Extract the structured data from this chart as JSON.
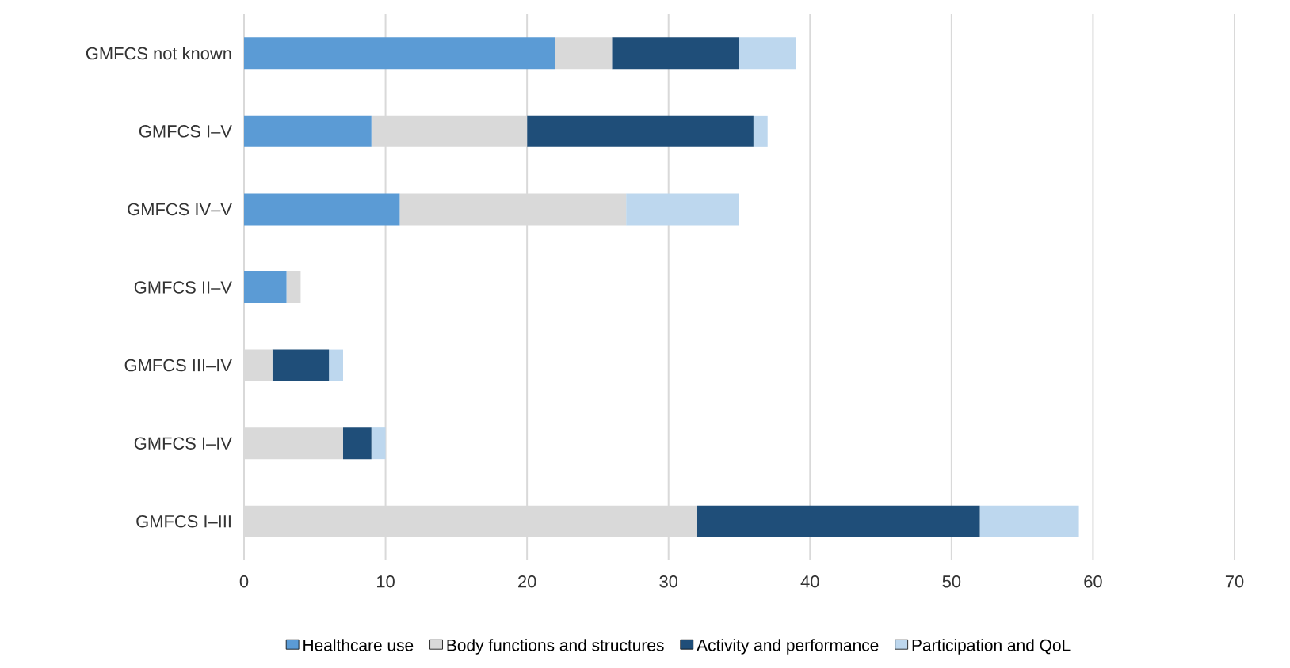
{
  "chart_data": {
    "type": "bar",
    "orientation": "horizontal",
    "stacked": true,
    "categories": [
      "GMFCS  not known",
      "GMFCS I–V",
      "GMFCS IV–V",
      "GMFCS II–V",
      "GMFCS III–IV",
      "GMFCS I–IV",
      "GMFCS I–III"
    ],
    "series": [
      {
        "name": "Healthcare use",
        "color": "#5b9bd5",
        "values": [
          22,
          9,
          11,
          3,
          0,
          0,
          0
        ]
      },
      {
        "name": "Body functions and structures",
        "color": "#d9d9d9",
        "values": [
          4,
          11,
          16,
          1,
          2,
          7,
          32
        ]
      },
      {
        "name": "Activity and performance",
        "color": "#1f4e79",
        "values": [
          9,
          16,
          0,
          0,
          4,
          2,
          20
        ]
      },
      {
        "name": "Participation and QoL",
        "color": "#bdd7ee",
        "values": [
          4,
          1,
          8,
          0,
          1,
          1,
          7
        ]
      }
    ],
    "xlim": [
      0,
      70
    ],
    "xticks": [
      0,
      10,
      20,
      30,
      40,
      50,
      60,
      70
    ],
    "grid": "x",
    "legend": "bottom"
  }
}
